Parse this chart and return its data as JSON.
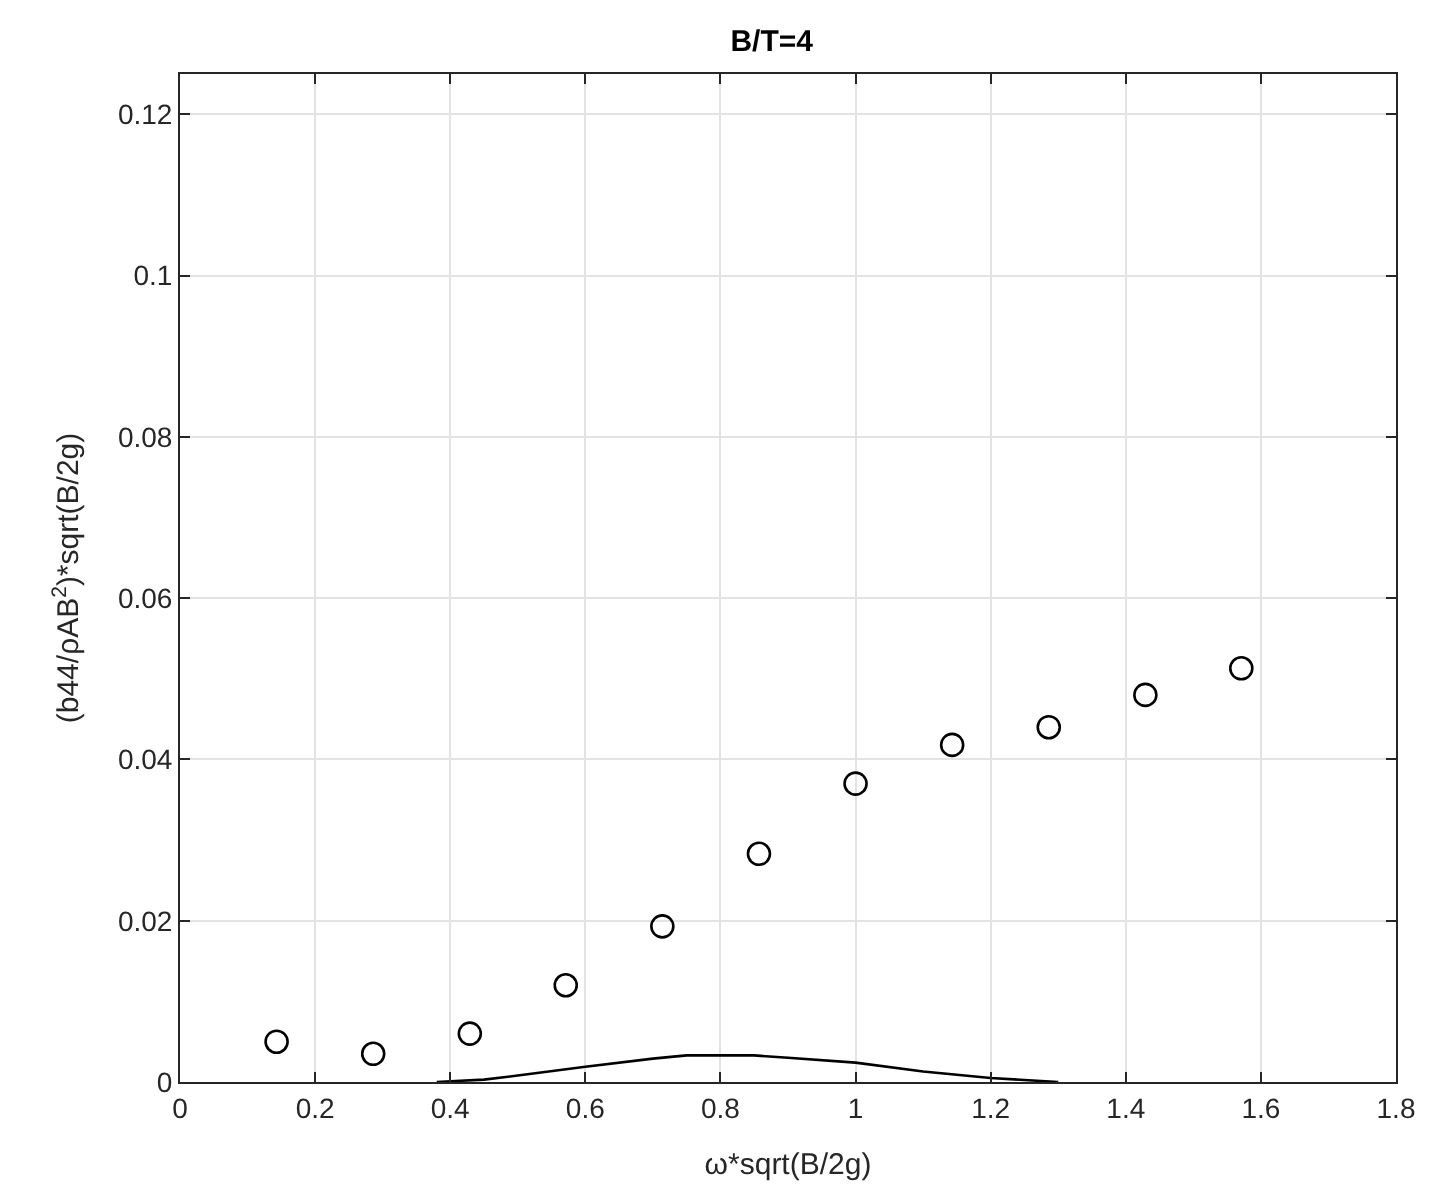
{
  "chart_data": {
    "type": "scatter",
    "title": "B/T=4",
    "xlabel": "ω*sqrt(B/2g)",
    "ylabel": "(b44/ρAB$^{2}$)*sqrt(B/2g)",
    "series": [
      {
        "color": "#000000",
        "marker": "circle",
        "x": [
          0.143,
          0.286,
          0.429,
          0.571,
          0.714,
          0.857,
          1.0,
          1.143,
          1.286,
          1.429,
          1.571
        ],
        "values": [
          0.005,
          0.0035,
          0.006,
          0.012,
          0.0193,
          0.0283,
          0.037,
          0.0418,
          0.044,
          0.048,
          0.0513
        ]
      },
      {
        "type": "line",
        "color": "#000000",
        "marker": "none",
        "line_style": "solid",
        "x": [
          0.38,
          0.45,
          0.5,
          0.6,
          0.7,
          0.75,
          0.85,
          0.9,
          1.0,
          1.1,
          1.2,
          1.3
        ],
        "values": [
          0,
          0.0003,
          0.0008,
          0.0019,
          0.0029,
          0.0033,
          0.0033,
          0.003,
          0.0024,
          0.0013,
          0.0005,
          0
        ]
      }
    ],
    "xlim": [
      0,
      1.8
    ],
    "xticks": [
      0,
      0.2,
      0.4,
      0.6,
      0.8,
      1,
      1.2,
      1.4,
      1.6,
      1.8
    ],
    "ylim": [
      0,
      0.125
    ],
    "yticks": [
      0,
      0.02,
      0.04,
      0.06,
      0.08,
      0.1,
      0.12
    ],
    "grid": true
  }
}
